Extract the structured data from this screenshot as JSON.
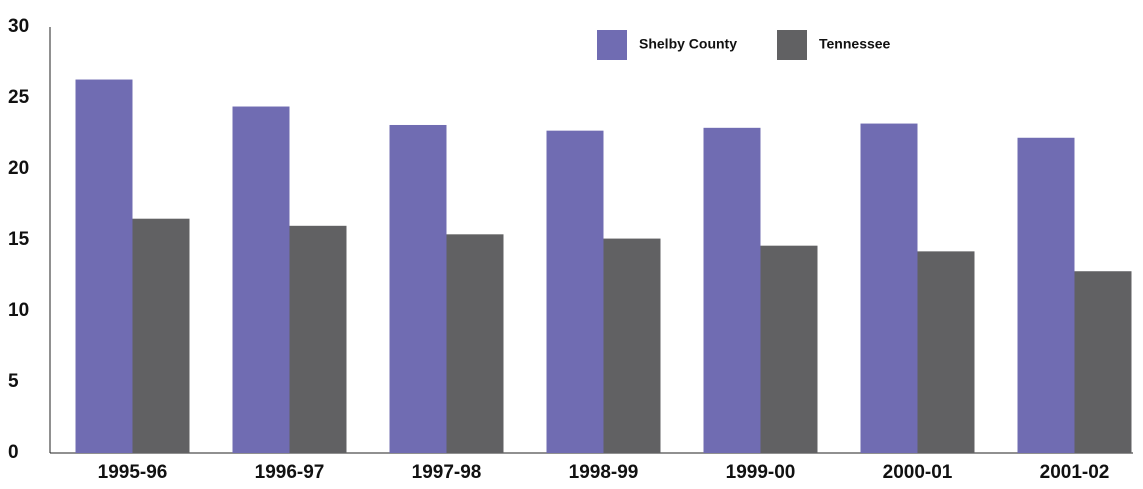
{
  "chart_data": {
    "type": "bar",
    "categories": [
      "1995-96",
      "1996-97",
      "1997-98",
      "1998-99",
      "1999-00",
      "2000-01",
      "2001-02"
    ],
    "series": [
      {
        "name": "Shelby County",
        "color": "#706cb2",
        "values": [
          26.3,
          24.4,
          23.1,
          22.7,
          22.9,
          23.2,
          22.2
        ]
      },
      {
        "name": "Tennessee",
        "color": "#616163",
        "values": [
          16.5,
          16.0,
          15.4,
          15.1,
          14.6,
          14.2,
          12.8
        ]
      }
    ],
    "ylim": [
      0,
      30
    ],
    "yticks": [
      0,
      5,
      10,
      15,
      20,
      25,
      30
    ],
    "grid": false,
    "legend": "top"
  }
}
